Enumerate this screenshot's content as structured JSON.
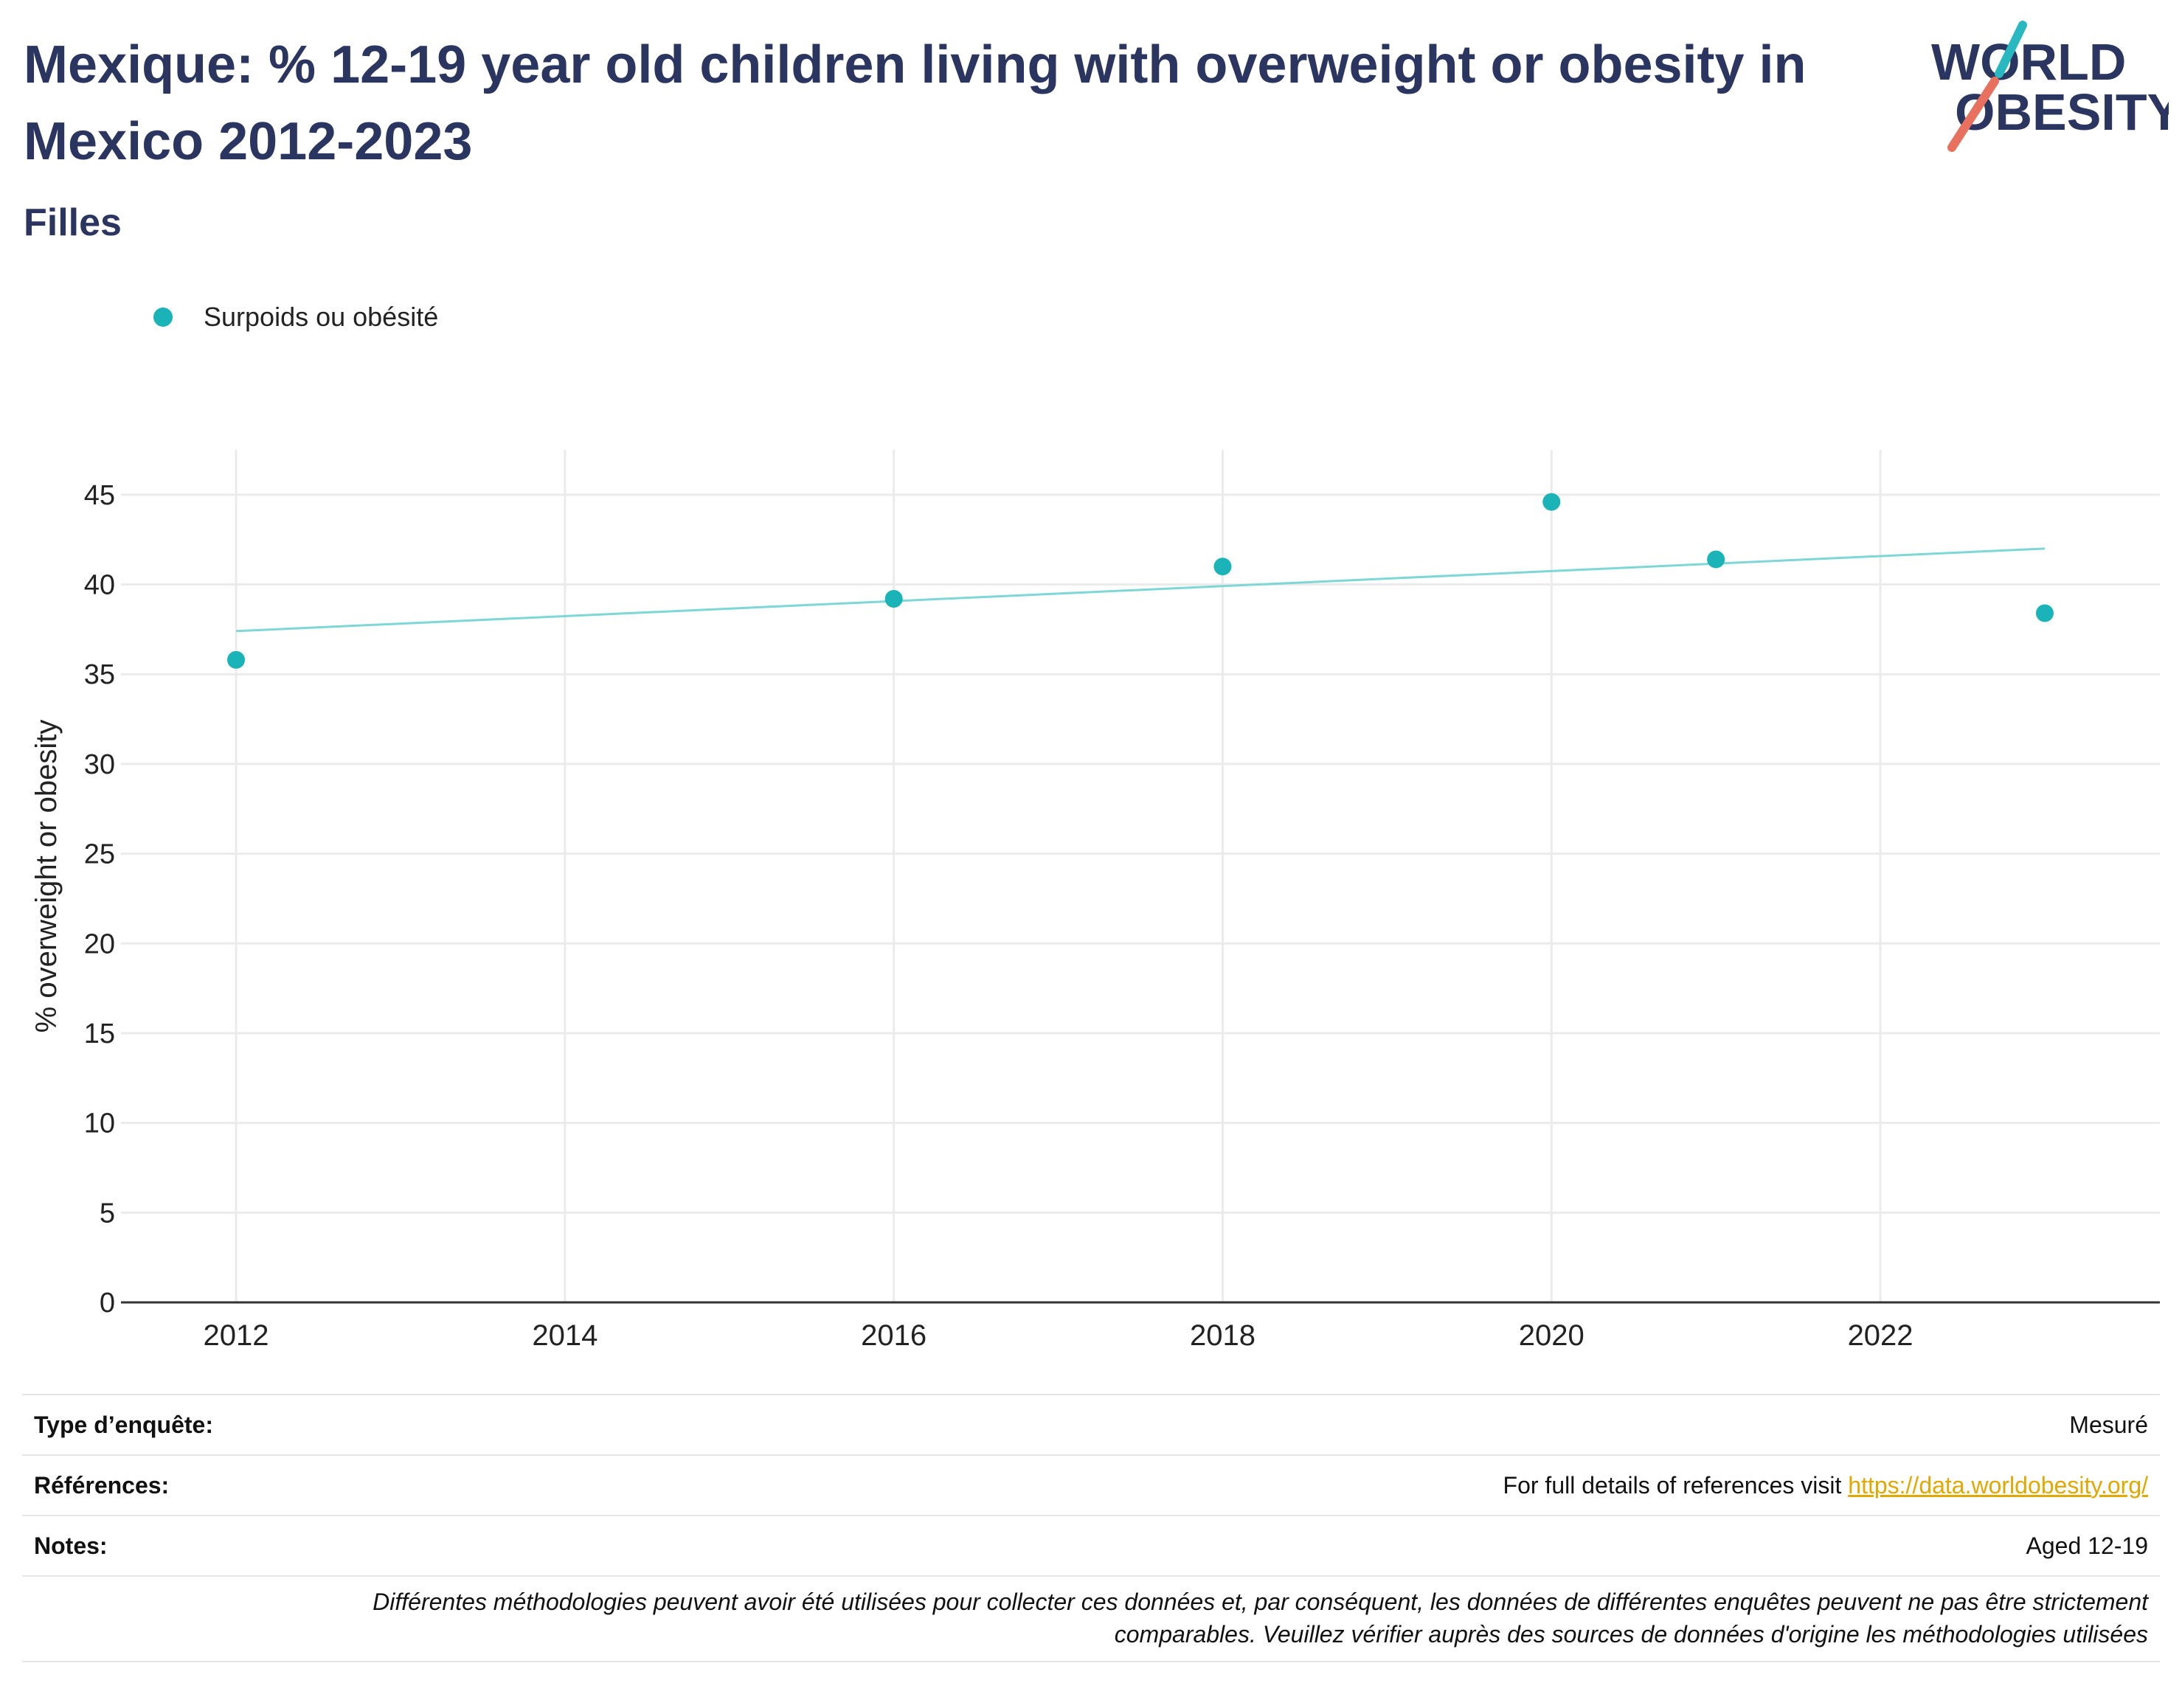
{
  "header": {
    "title": "Mexique: % 12-19 year old children living with overweight or obesity in Mexico 2012-2023",
    "subtitle": "Filles"
  },
  "logo": {
    "line1": "WORLD",
    "line2": "OBESITY",
    "accent_teal": "#2ab8c0",
    "accent_coral": "#e8705f"
  },
  "legend": {
    "label": "Surpoids ou obésité",
    "color": "#19b3b8"
  },
  "chart_data": {
    "type": "scatter",
    "title": "Mexique: % 12-19 year old children living with overweight or obesity in Mexico 2012-2023",
    "subtitle": "Filles",
    "xlabel": "",
    "ylabel": "% overweight or obesity",
    "xlim": [
      2011.3,
      2023.7
    ],
    "ylim": [
      0,
      47.5
    ],
    "x_ticks": [
      2012,
      2014,
      2016,
      2018,
      2020,
      2022
    ],
    "y_ticks": [
      0,
      5,
      10,
      15,
      20,
      25,
      30,
      35,
      40,
      45
    ],
    "grid": true,
    "legend_position": "top-left",
    "series": [
      {
        "name": "Surpoids ou obésité",
        "color": "#19b3b8",
        "points": [
          {
            "x": 2012,
            "y": 35.8
          },
          {
            "x": 2016,
            "y": 39.2
          },
          {
            "x": 2018,
            "y": 41.0
          },
          {
            "x": 2020,
            "y": 44.6
          },
          {
            "x": 2021,
            "y": 41.4
          },
          {
            "x": 2023,
            "y": 38.4
          }
        ]
      }
    ],
    "trendline": {
      "color": "#7fd6d6",
      "x": [
        2012,
        2023
      ],
      "y": [
        37.4,
        42.0
      ]
    }
  },
  "info": {
    "rows": [
      {
        "key": "Type d’enquête:",
        "value": "Mesuré"
      },
      {
        "key": "Références:",
        "value": "For full details of references visit ",
        "link": "https://data.worldobesity.org/"
      },
      {
        "key": "Notes:",
        "value": "Aged 12-19"
      }
    ],
    "disclaimer_line1": "Différentes méthodologies peuvent avoir été utilisées pour collecter ces données et, par conséquent, les données de différentes enquêtes peuvent ne pas être strictement",
    "disclaimer_line2": "comparables. Veuillez vérifier auprès des sources de données d'origine les méthodologies utilisées"
  }
}
